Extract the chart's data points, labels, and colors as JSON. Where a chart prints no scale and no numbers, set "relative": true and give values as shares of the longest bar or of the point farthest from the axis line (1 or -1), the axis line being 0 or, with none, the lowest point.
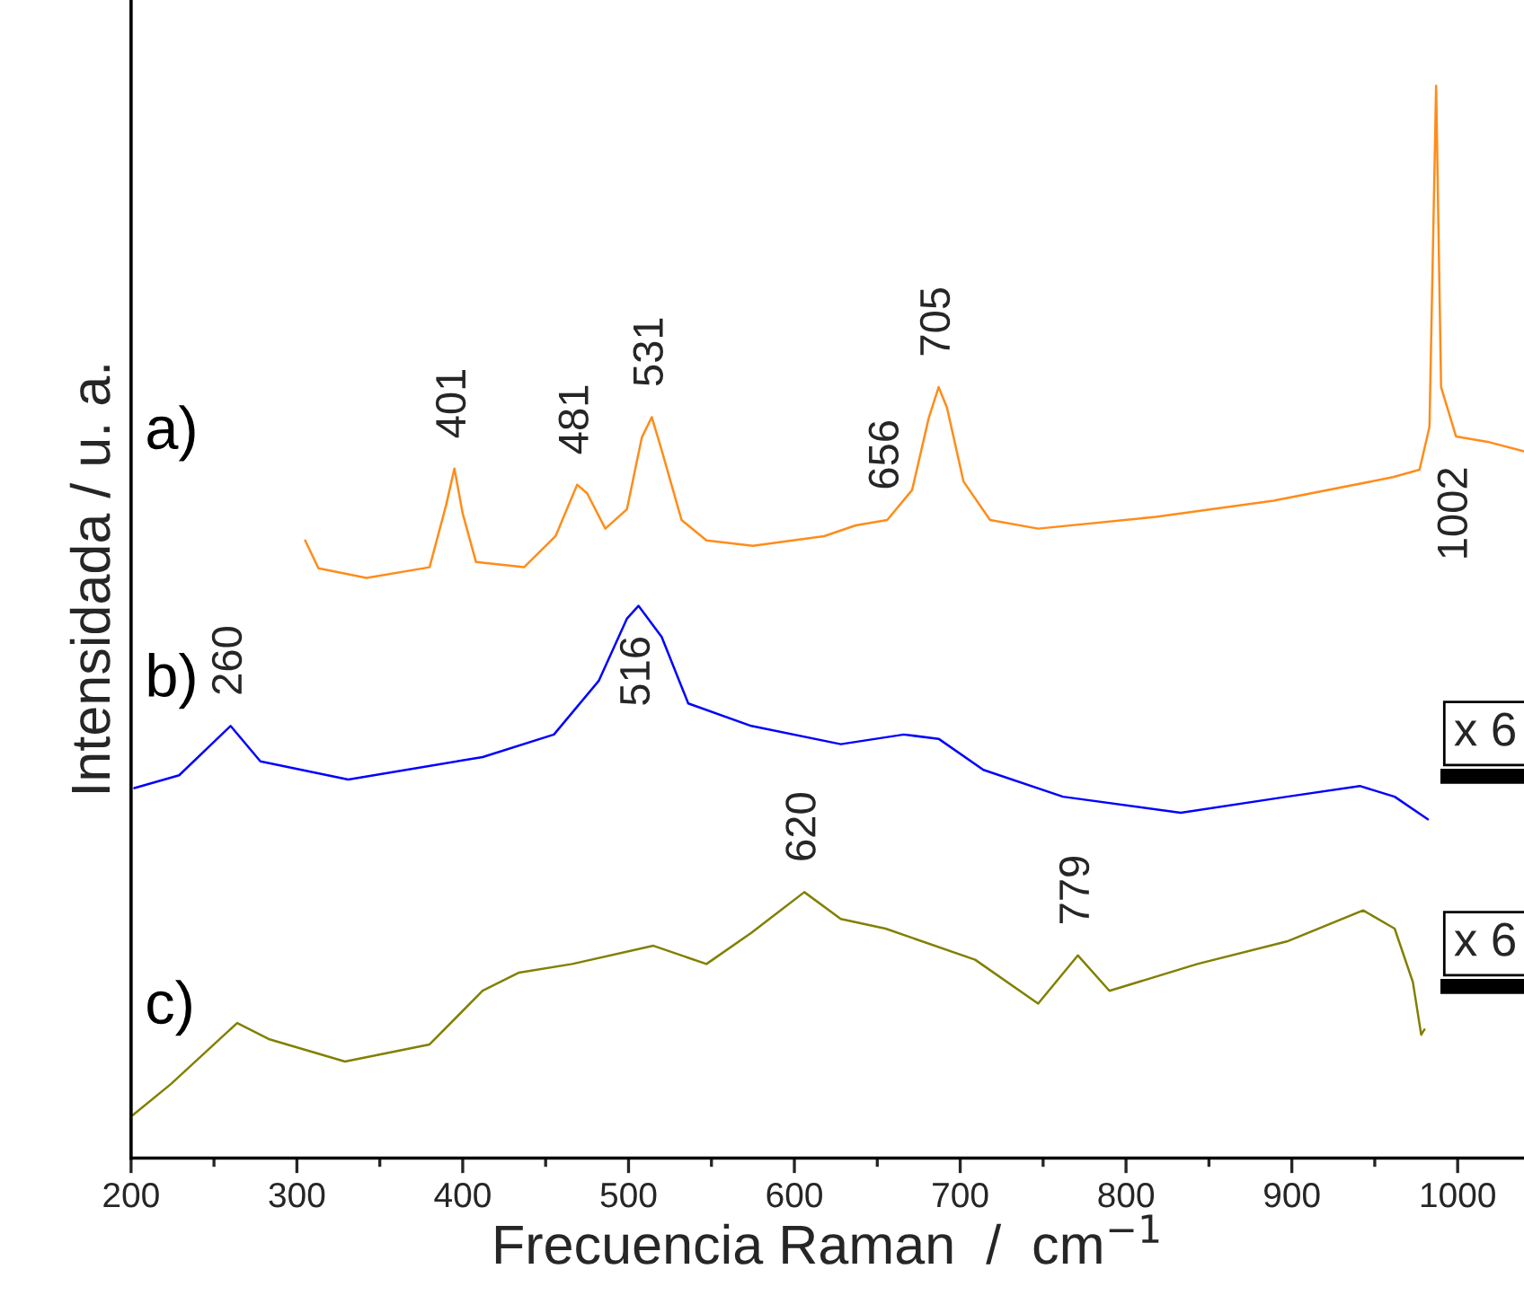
{
  "chart_data": {
    "type": "line",
    "relative": true,
    "xlabel": "Frecuencia Raman  /  cm$^{−1}$",
    "ylabel": "Intensidada / u. a.",
    "xlim": [
      200,
      1040
    ],
    "xticks": [
      200,
      300,
      400,
      500,
      600,
      700,
      800,
      900,
      1000
    ],
    "grid": false,
    "legend": false,
    "tick_labels": "x",
    "series": [
      {
        "name": "a)",
        "color": "#ff8c1a",
        "x": [
          305,
          313,
          342,
          380,
          390,
          395,
          400,
          408,
          437,
          456,
          469,
          475,
          486,
          499,
          508,
          514,
          520,
          532,
          547,
          575,
          618,
          637,
          656,
          671,
          681,
          687,
          692,
          702,
          718,
          747,
          818,
          889,
          961,
          977,
          983,
          987,
          990,
          999,
          1018,
          1040
        ],
        "values": [
          0.576,
          0.55,
          0.541,
          0.551,
          0.609,
          0.643,
          0.601,
          0.556,
          0.551,
          0.58,
          0.628,
          0.62,
          0.587,
          0.605,
          0.672,
          0.691,
          0.66,
          0.595,
          0.576,
          0.571,
          0.58,
          0.59,
          0.595,
          0.623,
          0.69,
          0.719,
          0.7,
          0.631,
          0.595,
          0.587,
          0.598,
          0.613,
          0.635,
          0.642,
          0.682,
          1.0,
          0.719,
          0.673,
          0.668,
          0.659
        ]
      },
      {
        "name": "b)",
        "color": "#0000ff",
        "x": [
          202,
          229,
          260,
          278,
          331,
          412,
          455,
          482,
          499,
          506,
          520,
          536,
          574,
          628,
          666,
          687,
          714,
          762,
          833,
          897,
          941,
          962,
          982
        ],
        "values": [
          0.345,
          0.357,
          0.403,
          0.37,
          0.353,
          0.374,
          0.395,
          0.445,
          0.503,
          0.515,
          0.486,
          0.424,
          0.403,
          0.386,
          0.395,
          0.391,
          0.362,
          0.337,
          0.322,
          0.337,
          0.347,
          0.337,
          0.316
        ]
      },
      {
        "name": "c)",
        "color": "#808000",
        "x": [
          201,
          224,
          264,
          283,
          329,
          380,
          412,
          434,
          466,
          515,
          547,
          574,
          606,
          628,
          655,
          709,
          747,
          771,
          790,
          843,
          897,
          943,
          962,
          973,
          978,
          980
        ],
        "values": [
          0.04,
          0.069,
          0.126,
          0.111,
          0.09,
          0.106,
          0.156,
          0.173,
          0.181,
          0.198,
          0.181,
          0.21,
          0.248,
          0.223,
          0.214,
          0.185,
          0.144,
          0.189,
          0.156,
          0.181,
          0.202,
          0.231,
          0.214,
          0.164,
          0.115,
          0.12
        ]
      }
    ],
    "annotations": [
      {
        "text": "401",
        "x": 395,
        "y": 0.643
      },
      {
        "text": "481",
        "x": 469,
        "y": 0.628
      },
      {
        "text": "531",
        "x": 514,
        "y": 0.691
      },
      {
        "text": "656",
        "x": 656,
        "y": 0.595
      },
      {
        "text": "705",
        "x": 687,
        "y": 0.719
      },
      {
        "text": "1002",
        "x": 999,
        "y": 0.673
      },
      {
        "text": "516",
        "x": 506,
        "y": 0.515
      },
      {
        "text": "260",
        "x": 260,
        "y": 0.403
      },
      {
        "text": "620",
        "x": 606,
        "y": 0.248
      },
      {
        "text": "779",
        "x": 771,
        "y": 0.189
      },
      "x 6",
      "x 6"
    ]
  }
}
